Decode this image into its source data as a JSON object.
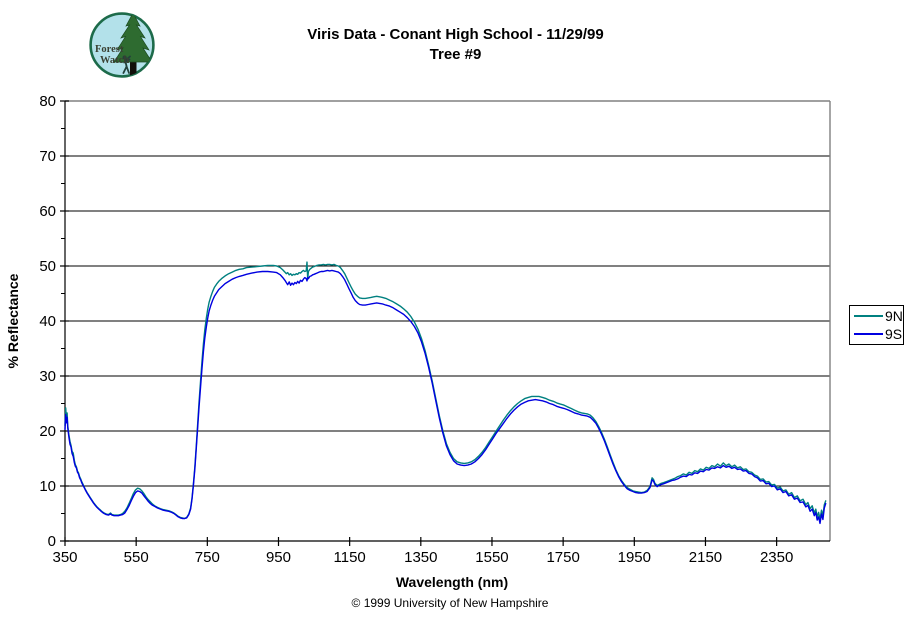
{
  "logo": {
    "text_line1": "Forest",
    "text_line2": "Watch"
  },
  "footer": {
    "copyright": "© 1999 University of New Hampshire"
  },
  "chart_data": {
    "type": "line",
    "title": "Viris Data - Conant High School - 11/29/99",
    "subtitle": "Tree #9",
    "xlabel": "Wavelength (nm)",
    "ylabel": "% Reflectance",
    "xlim": [
      350,
      2500
    ],
    "ylim": [
      0,
      80
    ],
    "x_ticks": [
      350,
      550,
      750,
      950,
      1150,
      1350,
      1550,
      1750,
      1950,
      2150,
      2350
    ],
    "y_ticks": [
      0,
      10,
      20,
      30,
      40,
      50,
      60,
      70,
      80
    ],
    "y_minor_step": 5,
    "grid": "horizontal",
    "legend_position": "right",
    "colors": {
      "frame": "#808080",
      "grid": "#000000",
      "axis": "#000000"
    },
    "series": [
      {
        "name": "9N",
        "color": "#008080"
      },
      {
        "name": "9S",
        "color": "#0000E0"
      }
    ],
    "points": [
      [
        350,
        21.0,
        20.3
      ],
      [
        352,
        24.2,
        23.0
      ],
      [
        354,
        22.2,
        21.5
      ],
      [
        356,
        23.3,
        22.5
      ],
      [
        358,
        20.9,
        20.5
      ],
      [
        361,
        19.3,
        18.9
      ],
      [
        364,
        18.1,
        17.6
      ],
      [
        367,
        17.4,
        17.1
      ],
      [
        370,
        16.3,
        15.9
      ],
      [
        373,
        16.0,
        15.4
      ],
      [
        376,
        14.7,
        14.3
      ],
      [
        379,
        13.9,
        13.6
      ],
      [
        382,
        13.5,
        13.3
      ],
      [
        385,
        12.7,
        12.5
      ],
      [
        388,
        12.4,
        12.2
      ],
      [
        391,
        11.7,
        11.5
      ],
      [
        394,
        11.3,
        11.1
      ],
      [
        397,
        10.8,
        10.6
      ],
      [
        400,
        10.4,
        10.2
      ],
      [
        404,
        9.8,
        9.7
      ],
      [
        408,
        9.3,
        9.2
      ],
      [
        412,
        8.8,
        8.7
      ],
      [
        416,
        8.4,
        8.3
      ],
      [
        420,
        8.0,
        7.9
      ],
      [
        425,
        7.5,
        7.4
      ],
      [
        430,
        7.0,
        6.9
      ],
      [
        435,
        6.6,
        6.5
      ],
      [
        440,
        6.2,
        6.1
      ],
      [
        445,
        5.9,
        5.8
      ],
      [
        450,
        5.6,
        5.5
      ],
      [
        455,
        5.3,
        5.2
      ],
      [
        460,
        5.1,
        5.0
      ],
      [
        466,
        4.9,
        4.8
      ],
      [
        472,
        4.8,
        4.7
      ],
      [
        478,
        5.1,
        4.9
      ],
      [
        482,
        4.8,
        4.7
      ],
      [
        488,
        4.7,
        4.6
      ],
      [
        494,
        4.7,
        4.6
      ],
      [
        500,
        4.7,
        4.6
      ],
      [
        506,
        4.8,
        4.7
      ],
      [
        512,
        5.0,
        4.8
      ],
      [
        518,
        5.4,
        5.1
      ],
      [
        524,
        6.0,
        5.7
      ],
      [
        530,
        6.8,
        6.4
      ],
      [
        536,
        7.7,
        7.3
      ],
      [
        542,
        8.6,
        8.1
      ],
      [
        548,
        9.3,
        8.8
      ],
      [
        554,
        9.6,
        9.1
      ],
      [
        560,
        9.5,
        9.0
      ],
      [
        566,
        9.1,
        8.7
      ],
      [
        572,
        8.6,
        8.2
      ],
      [
        578,
        8.0,
        7.7
      ],
      [
        584,
        7.5,
        7.2
      ],
      [
        590,
        7.1,
        6.8
      ],
      [
        596,
        6.7,
        6.5
      ],
      [
        602,
        6.4,
        6.3
      ],
      [
        610,
        6.1,
        6.0
      ],
      [
        618,
        5.9,
        5.8
      ],
      [
        626,
        5.7,
        5.6
      ],
      [
        634,
        5.6,
        5.5
      ],
      [
        642,
        5.5,
        5.4
      ],
      [
        650,
        5.3,
        5.2
      ],
      [
        656,
        5.1,
        5.0
      ],
      [
        662,
        4.8,
        4.7
      ],
      [
        668,
        4.5,
        4.4
      ],
      [
        674,
        4.3,
        4.2
      ],
      [
        680,
        4.2,
        4.1
      ],
      [
        686,
        4.1,
        4.1
      ],
      [
        692,
        4.3,
        4.2
      ],
      [
        698,
        4.9,
        4.8
      ],
      [
        703,
        6.0,
        5.8
      ],
      [
        707,
        7.8,
        7.6
      ],
      [
        711,
        10.4,
        10.1
      ],
      [
        715,
        13.6,
        13.2
      ],
      [
        719,
        17.4,
        16.9
      ],
      [
        723,
        21.4,
        20.7
      ],
      [
        727,
        25.4,
        24.5
      ],
      [
        731,
        29.2,
        28.1
      ],
      [
        735,
        32.7,
        31.4
      ],
      [
        739,
        35.8,
        34.4
      ],
      [
        743,
        38.4,
        36.9
      ],
      [
        747,
        40.5,
        38.9
      ],
      [
        751,
        42.1,
        40.5
      ],
      [
        755,
        43.4,
        41.8
      ],
      [
        760,
        44.5,
        42.9
      ],
      [
        765,
        45.4,
        43.8
      ],
      [
        770,
        46.1,
        44.5
      ],
      [
        776,
        46.7,
        45.1
      ],
      [
        782,
        47.2,
        45.7
      ],
      [
        790,
        47.7,
        46.2
      ],
      [
        800,
        48.2,
        46.8
      ],
      [
        810,
        48.6,
        47.2
      ],
      [
        820,
        48.9,
        47.6
      ],
      [
        830,
        49.2,
        47.9
      ],
      [
        840,
        49.4,
        48.1
      ],
      [
        850,
        49.5,
        48.3
      ],
      [
        860,
        49.7,
        48.5
      ],
      [
        875,
        49.8,
        48.7
      ],
      [
        890,
        49.9,
        48.9
      ],
      [
        905,
        50.0,
        49.0
      ],
      [
        920,
        50.1,
        49.0
      ],
      [
        935,
        50.1,
        48.9
      ],
      [
        945,
        50.0,
        48.8
      ],
      [
        955,
        49.7,
        48.4
      ],
      [
        962,
        49.3,
        47.9
      ],
      [
        968,
        48.9,
        47.4
      ],
      [
        972,
        48.6,
        47.0
      ],
      [
        976,
        48.8,
        46.6
      ],
      [
        980,
        48.4,
        47.1
      ],
      [
        984,
        48.6,
        46.5
      ],
      [
        988,
        48.3,
        46.9
      ],
      [
        992,
        48.5,
        46.6
      ],
      [
        996,
        48.4,
        47.0
      ],
      [
        1000,
        48.6,
        46.8
      ],
      [
        1004,
        48.5,
        47.2
      ],
      [
        1008,
        48.8,
        46.9
      ],
      [
        1012,
        48.7,
        47.4
      ],
      [
        1016,
        49.0,
        47.2
      ],
      [
        1020,
        49.2,
        47.6
      ],
      [
        1024,
        49.0,
        47.9
      ],
      [
        1028,
        49.1,
        47.7
      ],
      [
        1030,
        50.7,
        47.3
      ],
      [
        1032,
        47.6,
        47.9
      ],
      [
        1034,
        49.0,
        47.7
      ],
      [
        1038,
        49.4,
        48.1
      ],
      [
        1042,
        49.6,
        48.2
      ],
      [
        1046,
        49.8,
        48.4
      ],
      [
        1050,
        49.9,
        48.5
      ],
      [
        1054,
        50.0,
        48.6
      ],
      [
        1058,
        50.1,
        48.7
      ],
      [
        1064,
        50.2,
        48.9
      ],
      [
        1070,
        50.2,
        49.0
      ],
      [
        1076,
        50.3,
        49.0
      ],
      [
        1082,
        50.2,
        49.1
      ],
      [
        1088,
        50.3,
        49.2
      ],
      [
        1094,
        50.3,
        49.1
      ],
      [
        1100,
        50.2,
        49.2
      ],
      [
        1106,
        50.3,
        49.1
      ],
      [
        1112,
        50.1,
        49.0
      ],
      [
        1118,
        50.0,
        48.9
      ],
      [
        1124,
        49.7,
        48.6
      ],
      [
        1130,
        49.2,
        48.1
      ],
      [
        1136,
        48.6,
        47.5
      ],
      [
        1142,
        47.8,
        46.7
      ],
      [
        1148,
        47.0,
        45.9
      ],
      [
        1154,
        46.2,
        45.1
      ],
      [
        1160,
        45.5,
        44.3
      ],
      [
        1166,
        44.9,
        43.7
      ],
      [
        1172,
        44.5,
        43.3
      ],
      [
        1178,
        44.2,
        43.0
      ],
      [
        1186,
        44.1,
        42.9
      ],
      [
        1194,
        44.1,
        42.9
      ],
      [
        1202,
        44.2,
        43.0
      ],
      [
        1210,
        44.3,
        43.1
      ],
      [
        1218,
        44.4,
        43.2
      ],
      [
        1226,
        44.5,
        43.3
      ],
      [
        1234,
        44.4,
        43.2
      ],
      [
        1242,
        44.3,
        43.1
      ],
      [
        1252,
        44.1,
        42.9
      ],
      [
        1262,
        43.8,
        42.7
      ],
      [
        1272,
        43.5,
        42.4
      ],
      [
        1282,
        43.1,
        42.0
      ],
      [
        1292,
        42.7,
        41.6
      ],
      [
        1302,
        42.2,
        41.2
      ],
      [
        1312,
        41.6,
        40.6
      ],
      [
        1322,
        40.8,
        39.9
      ],
      [
        1332,
        39.8,
        39.0
      ],
      [
        1342,
        38.5,
        37.8
      ],
      [
        1352,
        36.8,
        36.2
      ],
      [
        1362,
        34.6,
        34.1
      ],
      [
        1372,
        32.0,
        31.6
      ],
      [
        1382,
        29.1,
        28.7
      ],
      [
        1392,
        25.9,
        25.5
      ],
      [
        1402,
        22.8,
        22.4
      ],
      [
        1412,
        20.0,
        19.6
      ],
      [
        1422,
        17.7,
        17.3
      ],
      [
        1432,
        16.1,
        15.7
      ],
      [
        1442,
        15.0,
        14.6
      ],
      [
        1452,
        14.4,
        14.0
      ],
      [
        1462,
        14.2,
        13.8
      ],
      [
        1472,
        14.1,
        13.7
      ],
      [
        1482,
        14.2,
        13.8
      ],
      [
        1492,
        14.4,
        14.0
      ],
      [
        1502,
        14.8,
        14.4
      ],
      [
        1512,
        15.4,
        15.0
      ],
      [
        1522,
        16.1,
        15.7
      ],
      [
        1532,
        17.0,
        16.6
      ],
      [
        1542,
        18.0,
        17.6
      ],
      [
        1552,
        19.0,
        18.6
      ],
      [
        1562,
        20.0,
        19.6
      ],
      [
        1572,
        21.0,
        20.5
      ],
      [
        1582,
        22.0,
        21.4
      ],
      [
        1592,
        22.9,
        22.3
      ],
      [
        1602,
        23.7,
        23.1
      ],
      [
        1612,
        24.4,
        23.8
      ],
      [
        1622,
        25.0,
        24.4
      ],
      [
        1632,
        25.5,
        24.9
      ],
      [
        1642,
        25.9,
        25.2
      ],
      [
        1652,
        26.1,
        25.5
      ],
      [
        1662,
        26.3,
        25.6
      ],
      [
        1672,
        26.3,
        25.7
      ],
      [
        1682,
        26.3,
        25.6
      ],
      [
        1692,
        26.1,
        25.5
      ],
      [
        1702,
        25.9,
        25.3
      ],
      [
        1712,
        25.6,
        25.0
      ],
      [
        1722,
        25.4,
        24.8
      ],
      [
        1732,
        25.1,
        24.5
      ],
      [
        1742,
        24.9,
        24.3
      ],
      [
        1752,
        24.7,
        24.1
      ],
      [
        1762,
        24.4,
        23.9
      ],
      [
        1772,
        24.1,
        23.6
      ],
      [
        1782,
        23.8,
        23.3
      ],
      [
        1792,
        23.5,
        23.1
      ],
      [
        1802,
        23.3,
        22.9
      ],
      [
        1810,
        23.2,
        22.8
      ],
      [
        1818,
        23.1,
        22.7
      ],
      [
        1826,
        22.9,
        22.5
      ],
      [
        1834,
        22.4,
        22.0
      ],
      [
        1842,
        21.7,
        21.4
      ],
      [
        1850,
        20.8,
        20.5
      ],
      [
        1858,
        19.7,
        19.4
      ],
      [
        1866,
        18.5,
        18.2
      ],
      [
        1874,
        17.1,
        16.8
      ],
      [
        1882,
        15.7,
        15.4
      ],
      [
        1890,
        14.3,
        14.0
      ],
      [
        1898,
        13.0,
        12.8
      ],
      [
        1906,
        11.9,
        11.7
      ],
      [
        1914,
        11.0,
        10.8
      ],
      [
        1922,
        10.3,
        10.1
      ],
      [
        1930,
        9.7,
        9.5
      ],
      [
        1938,
        9.4,
        9.2
      ],
      [
        1946,
        9.1,
        9.0
      ],
      [
        1954,
        9.0,
        8.8
      ],
      [
        1962,
        8.9,
        8.7
      ],
      [
        1970,
        8.8,
        8.7
      ],
      [
        1978,
        8.9,
        8.8
      ],
      [
        1986,
        9.2,
        9.0
      ],
      [
        1994,
        9.9,
        9.7
      ],
      [
        2000,
        11.5,
        11.1
      ],
      [
        2004,
        11.2,
        10.9
      ],
      [
        2008,
        10.5,
        10.3
      ],
      [
        2014,
        10.1,
        9.9
      ],
      [
        2020,
        10.3,
        10.1
      ],
      [
        2026,
        10.5,
        10.3
      ],
      [
        2032,
        10.6,
        10.4
      ],
      [
        2040,
        10.8,
        10.6
      ],
      [
        2048,
        11.0,
        10.8
      ],
      [
        2056,
        11.2,
        11.0
      ],
      [
        2064,
        11.4,
        11.1
      ],
      [
        2072,
        11.7,
        11.3
      ],
      [
        2080,
        11.9,
        11.6
      ],
      [
        2088,
        12.2,
        11.8
      ],
      [
        2096,
        12.0,
        11.7
      ],
      [
        2104,
        12.5,
        12.1
      ],
      [
        2112,
        12.3,
        12.0
      ],
      [
        2120,
        12.8,
        12.4
      ],
      [
        2128,
        12.6,
        12.3
      ],
      [
        2136,
        13.1,
        12.7
      ],
      [
        2144,
        12.9,
        12.6
      ],
      [
        2152,
        13.4,
        13.0
      ],
      [
        2160,
        13.2,
        12.9
      ],
      [
        2168,
        13.7,
        13.3
      ],
      [
        2176,
        13.5,
        13.2
      ],
      [
        2184,
        14.0,
        13.5
      ],
      [
        2192,
        13.6,
        13.3
      ],
      [
        2200,
        14.2,
        13.7
      ],
      [
        2208,
        13.7,
        13.4
      ],
      [
        2216,
        14.0,
        13.6
      ],
      [
        2224,
        13.5,
        13.2
      ],
      [
        2232,
        13.8,
        13.4
      ],
      [
        2240,
        13.3,
        13.0
      ],
      [
        2248,
        13.5,
        13.1
      ],
      [
        2256,
        13.0,
        12.7
      ],
      [
        2264,
        13.1,
        12.8
      ],
      [
        2272,
        12.6,
        12.3
      ],
      [
        2280,
        12.5,
        12.2
      ],
      [
        2288,
        12.0,
        11.7
      ],
      [
        2296,
        11.8,
        11.5
      ],
      [
        2304,
        11.2,
        10.9
      ],
      [
        2312,
        11.3,
        11.0
      ],
      [
        2320,
        10.7,
        10.4
      ],
      [
        2328,
        10.8,
        10.5
      ],
      [
        2336,
        10.2,
        9.9
      ],
      [
        2344,
        10.3,
        10.0
      ],
      [
        2352,
        9.6,
        9.3
      ],
      [
        2360,
        9.8,
        9.5
      ],
      [
        2368,
        9.1,
        8.8
      ],
      [
        2376,
        9.3,
        9.0
      ],
      [
        2384,
        8.5,
        8.2
      ],
      [
        2392,
        8.8,
        8.4
      ],
      [
        2400,
        7.9,
        7.6
      ],
      [
        2408,
        8.2,
        7.8
      ],
      [
        2416,
        7.3,
        7.0
      ],
      [
        2424,
        7.6,
        7.1
      ],
      [
        2432,
        6.6,
        6.2
      ],
      [
        2438,
        7.0,
        6.5
      ],
      [
        2444,
        5.9,
        5.4
      ],
      [
        2450,
        6.4,
        5.8
      ],
      [
        2456,
        5.1,
        4.6
      ],
      [
        2460,
        5.8,
        5.2
      ],
      [
        2464,
        4.4,
        3.8
      ],
      [
        2468,
        5.2,
        4.4
      ],
      [
        2472,
        3.9,
        3.2
      ],
      [
        2476,
        5.6,
        4.9
      ],
      [
        2480,
        4.6,
        3.9
      ],
      [
        2484,
        6.6,
        6.0
      ],
      [
        2488,
        7.3,
        6.8
      ]
    ]
  }
}
